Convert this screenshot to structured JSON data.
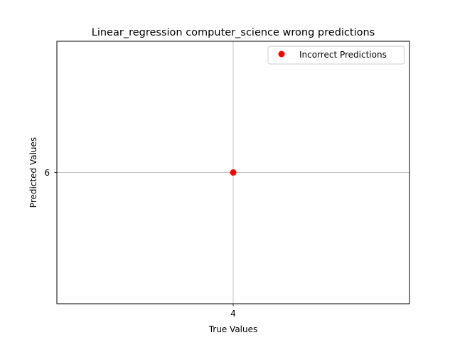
{
  "chart_data": {
    "type": "scatter",
    "title": "Linear_regression computer_science wrong predictions",
    "xlabel": "True Values",
    "ylabel": "Predicted Values",
    "xlim": [
      3.945,
      4.055
    ],
    "ylim": [
      5.945,
      6.055
    ],
    "xticks": [
      4
    ],
    "yticks": [
      6
    ],
    "grid": true,
    "legend_position": "top-right",
    "series": [
      {
        "name": "Incorrect Predictions",
        "color": "#ff0000",
        "points": [
          {
            "x": 4,
            "y": 6
          }
        ]
      }
    ]
  }
}
